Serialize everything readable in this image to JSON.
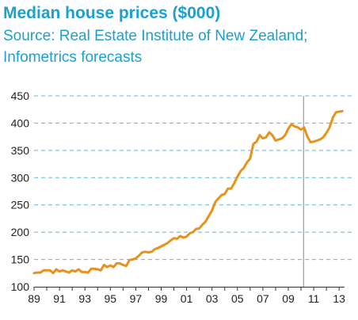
{
  "chart_data": {
    "type": "line",
    "title": "Median house prices ($000)",
    "subtitle": "Source: Real Estate Institute of New Zealand; Infometrics forecasts",
    "xlabel": "",
    "ylabel": "",
    "xlim": [
      1989,
      2013.3
    ],
    "ylim": [
      100,
      450
    ],
    "yticks": [
      100,
      150,
      200,
      250,
      300,
      350,
      400,
      450
    ],
    "xtick_labels": [
      "89",
      "90",
      "91",
      "92",
      "93",
      "94",
      "95",
      "96",
      "97",
      "98",
      "99",
      "00",
      "01",
      "02",
      "03",
      "04",
      "05",
      "06",
      "07",
      "08",
      "09",
      "10",
      "11",
      "12",
      "13"
    ],
    "forecast_start": 2010.2,
    "grid": "horizontal dashed",
    "colors": {
      "line": "#e8921c",
      "grid": "#5bb8d8",
      "title": "#1ba0cf",
      "divider": "#888888"
    },
    "series": [
      {
        "x": [
          1989.0,
          1989.25,
          1989.5,
          1989.75,
          1990.0,
          1990.25,
          1990.5,
          1990.75,
          1991.0,
          1991.25,
          1991.5,
          1991.75,
          1992.0,
          1992.25,
          1992.5,
          1992.75,
          1993.0,
          1993.25,
          1993.5,
          1993.75,
          1994.0,
          1994.25,
          1994.5,
          1994.75,
          1995.0,
          1995.25,
          1995.5,
          1995.75,
          1996.0,
          1996.25,
          1996.5,
          1996.75,
          1997.0,
          1997.25,
          1997.5,
          1997.75,
          1998.0,
          1998.25,
          1998.5,
          1998.75,
          1999.0,
          1999.25,
          1999.5,
          1999.75,
          2000.0,
          2000.25,
          2000.5,
          2000.75,
          2001.0,
          2001.25,
          2001.5,
          2001.75,
          2002.0,
          2002.25,
          2002.5,
          2002.75,
          2003.0,
          2003.25,
          2003.5,
          2003.75,
          2004.0,
          2004.25,
          2004.5,
          2004.75,
          2005.0,
          2005.25,
          2005.5,
          2005.75,
          2006.0,
          2006.25,
          2006.5,
          2006.75,
          2007.0,
          2007.25,
          2007.5,
          2007.75,
          2008.0,
          2008.25,
          2008.5,
          2008.75,
          2009.0,
          2009.25,
          2009.5,
          2009.75,
          2010.0,
          2010.25,
          2010.5,
          2010.75,
          2011.0,
          2011.25,
          2011.5,
          2011.75,
          2012.0,
          2012.25,
          2012.5,
          2012.75,
          2013.0,
          2013.25
        ],
        "values": [
          125,
          126,
          126,
          130,
          130,
          130,
          125,
          132,
          128,
          130,
          128,
          126,
          130,
          128,
          132,
          127,
          127,
          126,
          133,
          133,
          132,
          130,
          140,
          136,
          139,
          136,
          143,
          143,
          140,
          138,
          149,
          150,
          152,
          157,
          163,
          164,
          163,
          164,
          169,
          171,
          174,
          177,
          180,
          185,
          189,
          188,
          193,
          190,
          192,
          198,
          200,
          206,
          207,
          214,
          220,
          230,
          240,
          255,
          262,
          268,
          270,
          280,
          280,
          290,
          302,
          312,
          318,
          328,
          335,
          362,
          366,
          378,
          372,
          374,
          383,
          378,
          368,
          370,
          372,
          378,
          390,
          398,
          394,
          392,
          388,
          392,
          375,
          365,
          366,
          368,
          370,
          374,
          382,
          392,
          410,
          420,
          421,
          422
        ]
      }
    ]
  }
}
